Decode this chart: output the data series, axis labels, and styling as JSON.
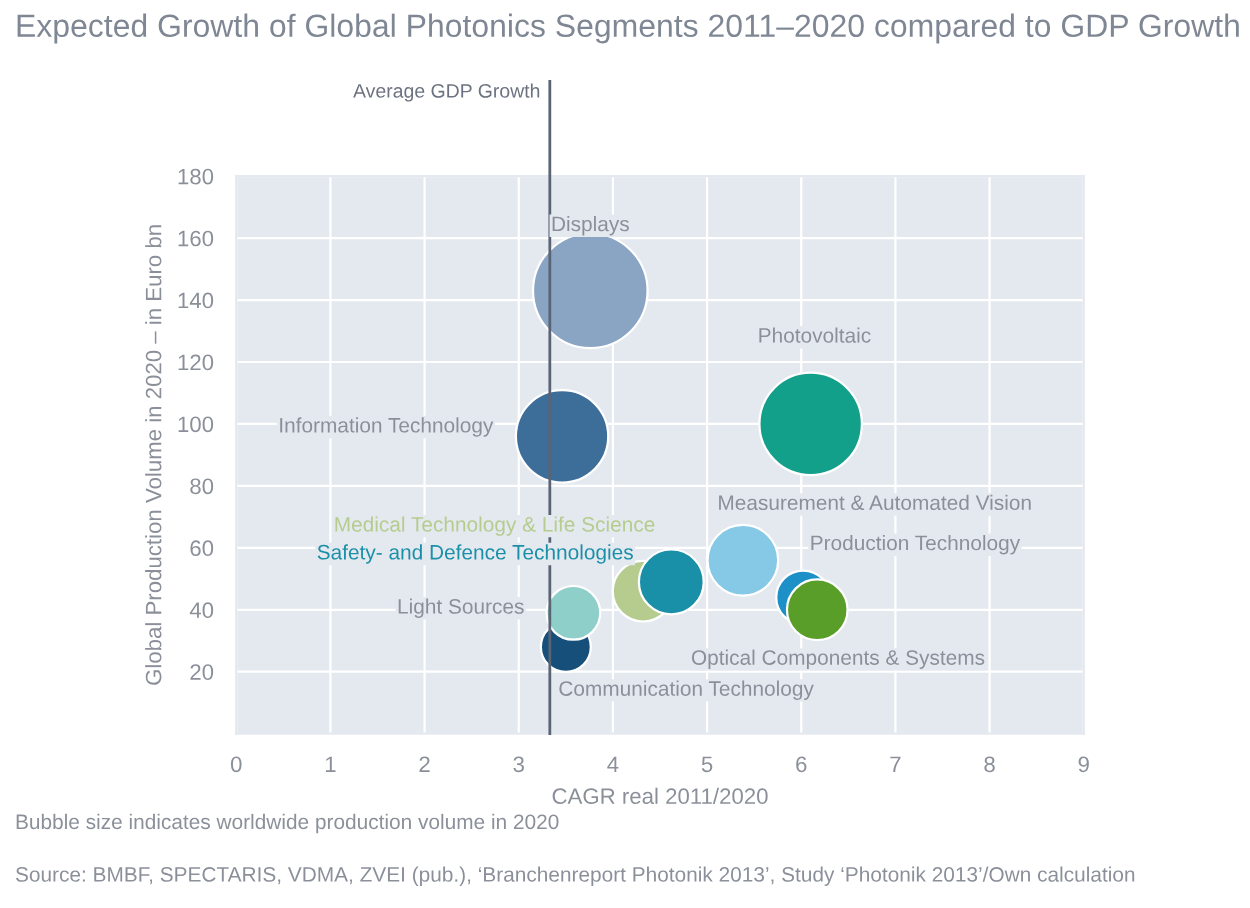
{
  "chart_data": {
    "type": "bubble",
    "title": "Expected Growth of Global Photonics Segments 2011–2020 compared to GDP Growth",
    "xlabel": "CAGR real 2011/2020",
    "ylabel": "Global Production Volume in 2020 – in Euro bn",
    "xlim": [
      0,
      9
    ],
    "xticks": [
      0,
      1,
      2,
      3,
      4,
      5,
      6,
      7,
      8,
      9
    ],
    "ylim": [
      0,
      180
    ],
    "yticks": [
      20,
      40,
      60,
      80,
      100,
      120,
      140,
      160,
      180
    ],
    "grid": true,
    "ref_lines": [
      {
        "axis": "x",
        "value": 3.33,
        "label": "Average GDP Growth",
        "color": "#5a6475"
      }
    ],
    "series": [
      {
        "name": "Displays",
        "color": "#8aa5c4",
        "x": [
          3.76
        ],
        "values": [
          143
        ],
        "sizes": [
          1
        ]
      },
      {
        "name": "Information Technology",
        "color": "#3d6d99",
        "x": [
          3.46
        ],
        "values": [
          96
        ],
        "sizes": [
          0.65
        ]
      },
      {
        "name": "Photovoltaic",
        "color": "#12a08a",
        "x": [
          6.1
        ],
        "values": [
          100
        ],
        "sizes": [
          0.8
        ]
      },
      {
        "name": "Measurement & Automated Vision",
        "color": "#85c9e6",
        "x": [
          5.38
        ],
        "values": [
          56
        ],
        "sizes": [
          0.38
        ]
      },
      {
        "name": "Communication Technology",
        "color": "#154f7a",
        "x": [
          3.5
        ],
        "values": [
          28
        ],
        "sizes": [
          0.19
        ]
      },
      {
        "name": "Light Sources",
        "color": "#8ecfc9",
        "x": [
          3.58
        ],
        "values": [
          39
        ],
        "sizes": [
          0.22
        ]
      },
      {
        "name": "Medical Technology & Life Science",
        "color": "#b5cc8e",
        "x": [
          4.32
        ],
        "values": [
          46
        ],
        "sizes": [
          0.28
        ]
      },
      {
        "name": "Safety- and Defence Technologies",
        "color": "#1a8fa8",
        "x": [
          4.62
        ],
        "values": [
          49
        ],
        "sizes": [
          0.32
        ]
      },
      {
        "name": "Production Technology",
        "color": "#1e90c8",
        "x": [
          6.02
        ],
        "values": [
          44
        ],
        "sizes": [
          0.22
        ]
      },
      {
        "name": "Optical Components & Systems",
        "color": "#5a9e2a",
        "x": [
          6.17
        ],
        "values": [
          40
        ],
        "sizes": [
          0.28
        ]
      }
    ],
    "annotations": [
      "Bubble size indicates worldwide production volume in 2020",
      "Source: BMBF, SPECTARIS, VDMA, ZVEI (pub.), ‘Branchenreport Photonik 2013’, Study ‘Photonik 2013’/Own calculation"
    ]
  }
}
